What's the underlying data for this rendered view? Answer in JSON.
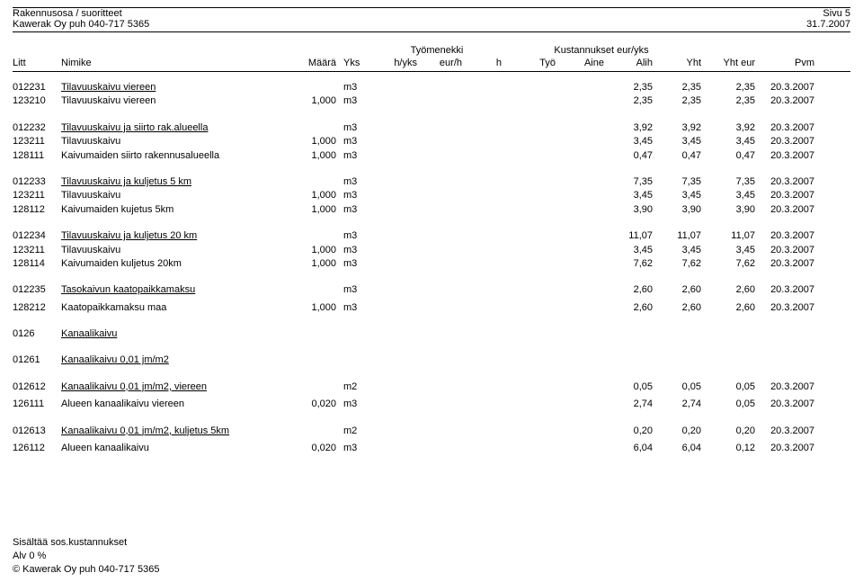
{
  "header": {
    "title1": "Rakennusosa / suoritteet",
    "title2": "Kawerak Oy puh 040-717 5365",
    "page": "Sivu 5",
    "date": "31.7.2007"
  },
  "superheaders": {
    "tyomenekki": "Työmenekki",
    "kustannukset": "Kustannukset eur/yks"
  },
  "columns": {
    "litt": "Litt",
    "nimike": "Nimike",
    "maara": "Määrä",
    "yks": "Yks",
    "hyks": "h/yks",
    "eurh": "eur/h",
    "h": "h",
    "tyo": "Työ",
    "aine": "Aine",
    "alih": "Alih",
    "yht": "Yht",
    "yhteur": "Yht eur",
    "pvm": "Pvm"
  },
  "rows": [
    {
      "type": "section",
      "litt": "012231",
      "nimike": "Tilavuuskaivu viereen",
      "yks": "m3",
      "yht": "2,35",
      "yhteur": "2,35",
      "alih": "2,35",
      "pvm": "20.3.2007"
    },
    {
      "type": "detail",
      "litt": "123210",
      "nimike": "Tilavuuskaivu viereen",
      "maara": "1,000",
      "yks": "m3",
      "yht": "2,35",
      "yhteur": "2,35",
      "alih": "2,35",
      "pvm": "20.3.2007"
    },
    {
      "type": "gap"
    },
    {
      "type": "section",
      "litt": "012232",
      "nimike": "Tilavuuskaivu ja siirto rak.alueella",
      "yks": "m3",
      "yht": "3,92",
      "yhteur": "3,92",
      "alih": "3,92",
      "pvm": "20.3.2007"
    },
    {
      "type": "detail",
      "litt": "123211",
      "nimike": "Tilavuuskaivu",
      "maara": "1,000",
      "yks": "m3",
      "yht": "3,45",
      "yhteur": "3,45",
      "alih": "3,45",
      "pvm": "20.3.2007"
    },
    {
      "type": "detail",
      "litt": "128111",
      "nimike": "Kaivumaiden siirto rakennusalueella",
      "maara": "1,000",
      "yks": "m3",
      "yht": "0,47",
      "yhteur": "0,47",
      "alih": "0,47",
      "pvm": "20.3.2007"
    },
    {
      "type": "gap"
    },
    {
      "type": "section",
      "litt": "012233",
      "nimike": "Tilavuuskaivu ja kuljetus 5 km",
      "yks": "m3",
      "yht": "7,35",
      "yhteur": "7,35",
      "alih": "7,35",
      "pvm": "20.3.2007"
    },
    {
      "type": "detail",
      "litt": "123211",
      "nimike": "Tilavuuskaivu",
      "maara": "1,000",
      "yks": "m3",
      "yht": "3,45",
      "yhteur": "3,45",
      "alih": "3,45",
      "pvm": "20.3.2007"
    },
    {
      "type": "detail",
      "litt": "128112",
      "nimike": "Kaivumaiden kujetus 5km",
      "maara": "1,000",
      "yks": "m3",
      "yht": "3,90",
      "yhteur": "3,90",
      "alih": "3,90",
      "pvm": "20.3.2007"
    },
    {
      "type": "gap"
    },
    {
      "type": "section",
      "litt": "012234",
      "nimike": "Tilavuuskaivu ja kuljetus 20 km",
      "yks": "m3",
      "yht": "11,07",
      "yhteur": "11,07",
      "alih": "11,07",
      "pvm": "20.3.2007"
    },
    {
      "type": "detail",
      "litt": "123211",
      "nimike": "Tilavuuskaivu",
      "maara": "1,000",
      "yks": "m3",
      "yht": "3,45",
      "yhteur": "3,45",
      "alih": "3,45",
      "pvm": "20.3.2007"
    },
    {
      "type": "detail",
      "litt": "128114",
      "nimike": "Kaivumaiden kuljetus 20km",
      "maara": "1,000",
      "yks": "m3",
      "yht": "7,62",
      "yhteur": "7,62",
      "alih": "7,62",
      "pvm": "20.3.2007"
    },
    {
      "type": "gap"
    },
    {
      "type": "section",
      "litt": "012235",
      "nimike": "Tasokaivun kaatopaikkamaksu",
      "yks": "m3",
      "yht": "2,60",
      "yhteur": "2,60",
      "alih": "2,60",
      "pvm": "20.3.2007"
    },
    {
      "type": "sp-sm"
    },
    {
      "type": "detail",
      "litt": "128212",
      "nimike": "Kaatopaikkamaksu maa",
      "maara": "1,000",
      "yks": "m3",
      "yht": "2,60",
      "yhteur": "2,60",
      "alih": "2,60",
      "pvm": "20.3.2007"
    },
    {
      "type": "gap"
    },
    {
      "type": "section",
      "litt": "0126",
      "nimike": "Kanaalikaivu"
    },
    {
      "type": "gap"
    },
    {
      "type": "section",
      "litt": "01261",
      "nimike": "Kanaalikaivu 0,01 jm/m2"
    },
    {
      "type": "gap"
    },
    {
      "type": "section",
      "litt": "012612",
      "nimike": "Kanaalikaivu 0,01 jm/m2, viereen",
      "yks": "m2",
      "yht": "0,05",
      "yhteur": "0,05",
      "alih": "0,05",
      "pvm": "20.3.2007"
    },
    {
      "type": "sp-sm"
    },
    {
      "type": "detail",
      "litt": "126111",
      "nimike": "Alueen kanaalikaivu viereen",
      "maara": "0,020",
      "yks": "m3",
      "yht": "2,74",
      "yhteur": "0,05",
      "alih": "2,74",
      "pvm": "20.3.2007"
    },
    {
      "type": "gap"
    },
    {
      "type": "section",
      "litt": "012613",
      "nimike": "Kanaalikaivu 0,01 jm/m2, kuljetus 5km",
      "yks": "m2",
      "yht": "0,20",
      "yhteur": "0,20",
      "alih": "0,20",
      "pvm": "20.3.2007"
    },
    {
      "type": "sp-sm"
    },
    {
      "type": "detail",
      "litt": "126112",
      "nimike": "Alueen kanaalikaivu",
      "maara": "0,020",
      "yks": "m3",
      "yht": "6,04",
      "yhteur": "0,12",
      "alih": "6,04",
      "pvm": "20.3.2007"
    }
  ],
  "footer": {
    "line1": "Sisältää sos.kustannukset",
    "line2": "Alv 0 %",
    "line3": "©  Kawerak Oy puh 040-717 5365"
  }
}
